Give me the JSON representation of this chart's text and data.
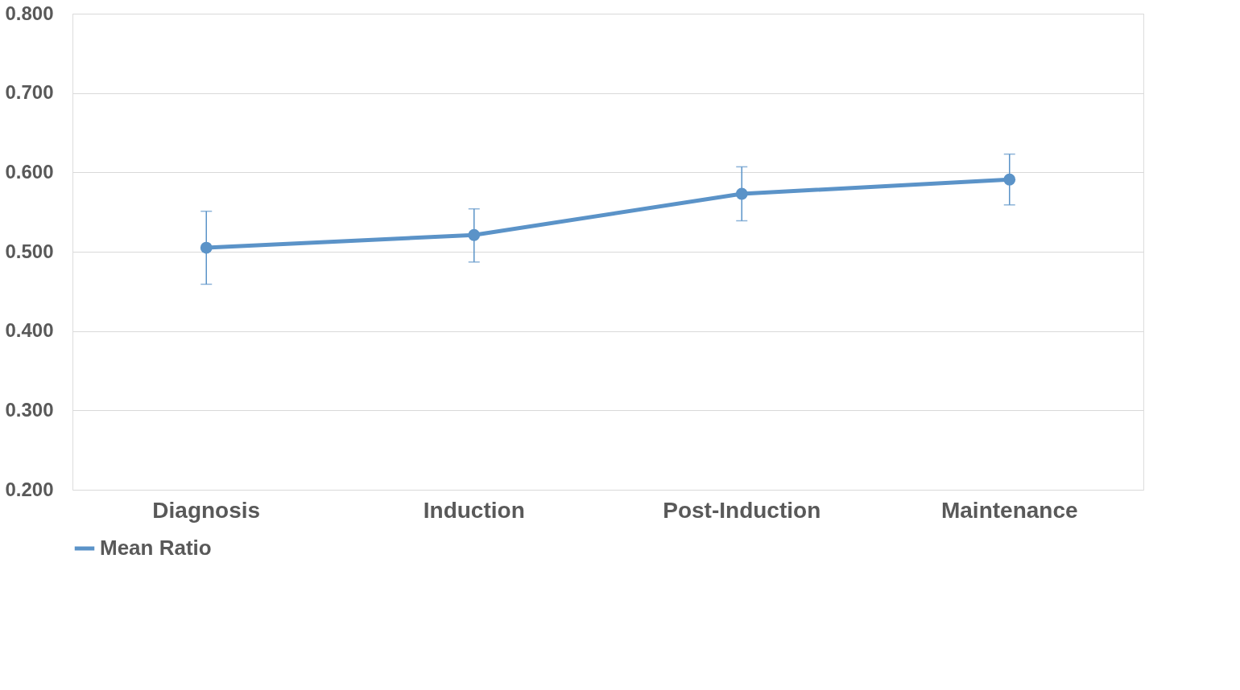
{
  "chart_data": {
    "type": "line",
    "categories": [
      "Diagnosis",
      "Induction",
      "Post-Induction",
      "Maintenance"
    ],
    "series": [
      {
        "name": "Mean Ratio",
        "color": "#5b93c8",
        "values": [
          0.505,
          0.521,
          0.573,
          0.591
        ],
        "errors": [
          [
            0.459,
            0.551
          ],
          [
            0.487,
            0.554
          ],
          [
            0.539,
            0.607
          ],
          [
            0.559,
            0.623
          ]
        ]
      }
    ],
    "ylim": [
      0.2,
      0.8
    ],
    "yticks": [
      {
        "value": 0.2,
        "label": "0.200"
      },
      {
        "value": 0.3,
        "label": "0.300"
      },
      {
        "value": 0.4,
        "label": "0.400"
      },
      {
        "value": 0.5,
        "label": "0.500"
      },
      {
        "value": 0.6,
        "label": "0.600"
      },
      {
        "value": 0.7,
        "label": "0.700"
      },
      {
        "value": 0.8,
        "label": "0.800"
      }
    ],
    "grid": "y",
    "legend": "bottom",
    "marker": "circle",
    "line_style": "solid"
  }
}
